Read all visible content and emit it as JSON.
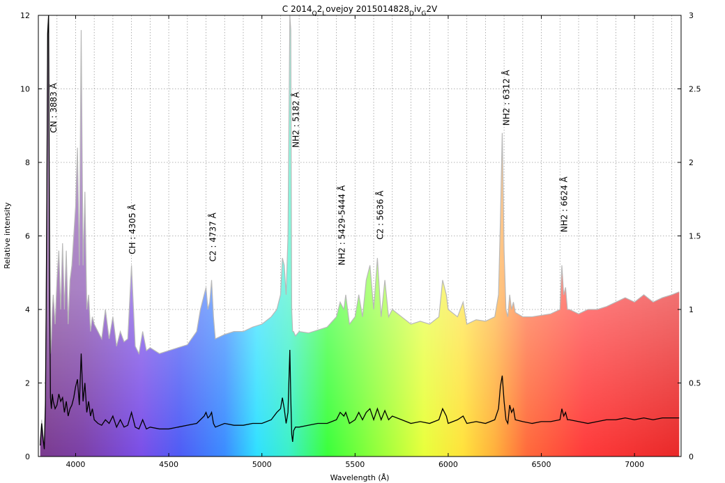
{
  "chart_data": {
    "type": "area",
    "title": "C 2014",
    "title_parts": [
      {
        "text": "C 2014",
        "sub": false
      },
      {
        "text": "Q",
        "sub": true
      },
      {
        "text": "2",
        "sub": false
      },
      {
        "text": "L",
        "sub": true
      },
      {
        "text": "ovejoy 2015014828",
        "sub": false
      },
      {
        "text": "D",
        "sub": true
      },
      {
        "text": "iv",
        "sub": false
      },
      {
        "text": "G",
        "sub": true
      },
      {
        "text": "2V",
        "sub": false
      }
    ],
    "xlabel": "Wavelength (Å)",
    "ylabel": "Relative intensity",
    "xlim": [
      3800,
      7250
    ],
    "ylim": [
      0,
      12
    ],
    "y2lim": [
      0,
      3
    ],
    "xticks": [
      4000,
      4500,
      5000,
      5500,
      6000,
      6500,
      7000
    ],
    "yticks": [
      0,
      2,
      4,
      6,
      8,
      10,
      12
    ],
    "y2ticks": [
      0,
      0.5,
      1,
      1.5,
      2,
      2.5,
      3
    ],
    "grid": true,
    "series": [
      {
        "axis": "left",
        "style": "line",
        "x": [
          3810,
          3818,
          3825,
          3832,
          3838,
          3842,
          3846,
          3850,
          3855,
          3860,
          3865,
          3870,
          3875,
          3880,
          3890,
          3900,
          3910,
          3920,
          3930,
          3940,
          3950,
          3960,
          3970,
          3980,
          3990,
          4000,
          4010,
          4020,
          4030,
          4040,
          4050,
          4060,
          4070,
          4080,
          4090,
          4100,
          4120,
          4140,
          4160,
          4180,
          4200,
          4220,
          4240,
          4260,
          4280,
          4300,
          4320,
          4340,
          4360,
          4380,
          4400,
          4450,
          4500,
          4550,
          4600,
          4650,
          4670,
          4690,
          4700,
          4710,
          4720,
          4730,
          4740,
          4750,
          4800,
          4850,
          4900,
          4950,
          5000,
          5050,
          5080,
          5100,
          5110,
          5120,
          5130,
          5140,
          5150,
          5155,
          5160,
          5165,
          5170,
          5180,
          5200,
          5250,
          5300,
          5350,
          5400,
          5420,
          5440,
          5450,
          5470,
          5500,
          5520,
          5540,
          5560,
          5580,
          5600,
          5620,
          5640,
          5660,
          5680,
          5700,
          5750,
          5800,
          5850,
          5900,
          5950,
          5970,
          5990,
          6000,
          6050,
          6080,
          6100,
          6150,
          6200,
          6250,
          6270,
          6280,
          6290,
          6300,
          6310,
          6320,
          6330,
          6340,
          6350,
          6360,
          6400,
          6450,
          6500,
          6550,
          6600,
          6610,
          6620,
          6630,
          6640,
          6650,
          6700,
          6750,
          6800,
          6850,
          6900,
          6950,
          7000,
          7050,
          7100,
          7150,
          7200,
          7240
        ],
        "y": [
          0.3,
          0.9,
          0.5,
          0.2,
          1.4,
          4.0,
          7.5,
          11.5,
          12.0,
          5.0,
          1.6,
          1.3,
          1.7,
          1.5,
          1.3,
          1.4,
          1.7,
          1.5,
          1.6,
          1.2,
          1.5,
          1.1,
          1.3,
          1.4,
          1.6,
          1.9,
          2.1,
          1.4,
          2.8,
          1.5,
          2.0,
          1.2,
          1.5,
          1.1,
          1.3,
          1.0,
          0.9,
          0.85,
          1.0,
          0.9,
          1.1,
          0.8,
          1.0,
          0.8,
          0.85,
          1.2,
          0.8,
          0.75,
          1.0,
          0.75,
          0.8,
          0.75,
          0.75,
          0.8,
          0.85,
          0.9,
          1.0,
          1.1,
          1.2,
          1.05,
          1.1,
          1.2,
          0.9,
          0.8,
          0.9,
          0.85,
          0.85,
          0.9,
          0.9,
          1.0,
          1.2,
          1.3,
          1.6,
          1.3,
          0.9,
          1.2,
          2.9,
          1.6,
          0.6,
          0.4,
          0.7,
          0.8,
          0.8,
          0.85,
          0.9,
          0.9,
          1.0,
          1.2,
          1.1,
          1.2,
          0.9,
          1.0,
          1.2,
          1.0,
          1.2,
          1.3,
          1.0,
          1.3,
          1.0,
          1.25,
          1.0,
          1.1,
          1.0,
          0.9,
          0.95,
          0.9,
          1.0,
          1.3,
          1.1,
          0.9,
          1.0,
          1.1,
          0.9,
          0.95,
          0.9,
          1.0,
          1.3,
          1.9,
          2.2,
          1.5,
          1.0,
          0.9,
          1.4,
          1.2,
          1.3,
          1.0,
          0.95,
          0.9,
          0.95,
          0.95,
          1.0,
          1.3,
          1.1,
          1.2,
          1.0,
          1.0,
          0.95,
          0.9,
          0.95,
          1.0,
          1.0,
          1.05,
          1.0,
          1.05,
          1.0,
          1.05,
          1.05,
          1.05
        ]
      },
      {
        "axis": "right",
        "style": "filled-area",
        "x": [
          3810,
          3818,
          3825,
          3832,
          3838,
          3842,
          3846,
          3850,
          3855,
          3860,
          3865,
          3870,
          3875,
          3880,
          3890,
          3900,
          3910,
          3920,
          3930,
          3940,
          3950,
          3960,
          3970,
          3980,
          3990,
          4000,
          4010,
          4020,
          4030,
          4040,
          4050,
          4060,
          4070,
          4080,
          4090,
          4100,
          4120,
          4140,
          4160,
          4180,
          4200,
          4220,
          4240,
          4260,
          4280,
          4300,
          4320,
          4340,
          4360,
          4380,
          4400,
          4450,
          4500,
          4550,
          4600,
          4650,
          4670,
          4690,
          4700,
          4710,
          4720,
          4730,
          4740,
          4750,
          4800,
          4850,
          4900,
          4950,
          5000,
          5050,
          5080,
          5100,
          5110,
          5120,
          5130,
          5140,
          5150,
          5155,
          5160,
          5165,
          5170,
          5180,
          5200,
          5250,
          5300,
          5350,
          5400,
          5420,
          5440,
          5450,
          5470,
          5500,
          5520,
          5540,
          5560,
          5580,
          5600,
          5620,
          5640,
          5660,
          5680,
          5700,
          5750,
          5800,
          5850,
          5900,
          5950,
          5970,
          5990,
          6000,
          6050,
          6080,
          6100,
          6150,
          6200,
          6250,
          6270,
          6280,
          6290,
          6300,
          6310,
          6320,
          6330,
          6340,
          6350,
          6360,
          6400,
          6450,
          6500,
          6550,
          6600,
          6610,
          6620,
          6630,
          6640,
          6650,
          6700,
          6750,
          6800,
          6850,
          6900,
          6950,
          7000,
          7050,
          7100,
          7150,
          7200,
          7240
        ],
        "y": [
          0.1,
          0.25,
          0.15,
          0.1,
          0.4,
          1.0,
          1.9,
          2.9,
          3.0,
          2.0,
          0.7,
          0.8,
          1.0,
          1.1,
          0.9,
          1.2,
          1.4,
          1.0,
          1.45,
          1.0,
          1.4,
          0.9,
          1.2,
          1.3,
          1.5,
          1.7,
          2.1,
          1.3,
          2.9,
          1.3,
          1.8,
          1.0,
          1.1,
          0.85,
          0.95,
          0.9,
          0.85,
          0.8,
          1.0,
          0.8,
          0.95,
          0.75,
          0.85,
          0.78,
          0.8,
          1.3,
          0.75,
          0.7,
          0.85,
          0.72,
          0.74,
          0.7,
          0.72,
          0.74,
          0.76,
          0.85,
          1.0,
          1.1,
          1.15,
          1.0,
          1.05,
          1.2,
          0.95,
          0.8,
          0.83,
          0.85,
          0.85,
          0.88,
          0.9,
          0.95,
          1.0,
          1.1,
          1.35,
          1.3,
          1.1,
          1.5,
          3.0,
          2.9,
          1.0,
          0.85,
          0.85,
          0.82,
          0.85,
          0.84,
          0.86,
          0.88,
          0.95,
          1.05,
          1.0,
          1.1,
          0.9,
          0.95,
          1.1,
          0.95,
          1.2,
          1.3,
          1.0,
          1.35,
          0.95,
          1.2,
          0.95,
          1.0,
          0.95,
          0.9,
          0.92,
          0.9,
          0.95,
          1.2,
          1.1,
          1.0,
          0.95,
          1.05,
          0.9,
          0.93,
          0.92,
          0.95,
          1.1,
          1.6,
          2.2,
          1.4,
          1.0,
          0.95,
          1.1,
          1.0,
          1.05,
          0.98,
          0.95,
          0.95,
          0.96,
          0.97,
          1.0,
          1.3,
          1.1,
          1.15,
          1.0,
          1.0,
          0.97,
          1.0,
          1.0,
          1.02,
          1.05,
          1.08,
          1.05,
          1.1,
          1.05,
          1.08,
          1.1,
          1.12
        ]
      }
    ],
    "annotations": [
      {
        "text": "CN : 3883 Å",
        "x": 3883,
        "y": 8.8
      },
      {
        "text": "CH : 4305 Å",
        "x": 4305,
        "y": 5.5
      },
      {
        "text": "C2 : 4737 Å",
        "x": 4737,
        "y": 5.3
      },
      {
        "text": "NH2 : 5182 Å",
        "x": 5182,
        "y": 8.4
      },
      {
        "text": "NH2 : 5429-5444 Å",
        "x": 5429,
        "y": 5.2
      },
      {
        "text": "C2 : 5636 Å",
        "x": 5636,
        "y": 5.9
      },
      {
        "text": "NH2 : 6312 Å",
        "x": 6312,
        "y": 9.0
      },
      {
        "text": "NH2 : 6624 Å",
        "x": 6624,
        "y": 6.1
      }
    ]
  }
}
